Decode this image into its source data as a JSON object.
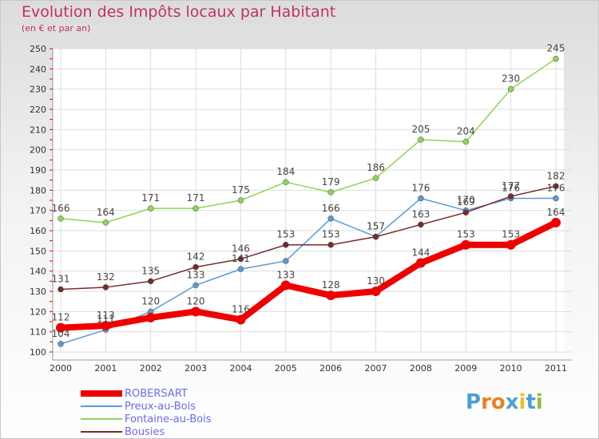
{
  "header": {
    "title": "Evolution des Impôts locaux par Habitant",
    "subtitle": "(en € et par an)"
  },
  "logo": {
    "text": "Proxiti",
    "letter_colors": [
      "#4a9fd8",
      "#e8821e",
      "#e8821e",
      "#4a9fd8",
      "#e8c020",
      "#4a9fd8",
      "#8ac03c"
    ]
  },
  "chart_data": {
    "type": "line",
    "x": [
      "2000",
      "2001",
      "2002",
      "2003",
      "2004",
      "2005",
      "2006",
      "2007",
      "2008",
      "2009",
      "2010",
      "2011"
    ],
    "ylim": [
      100,
      250
    ],
    "yticks": [
      100,
      110,
      120,
      130,
      140,
      150,
      160,
      170,
      180,
      190,
      200,
      210,
      220,
      230,
      240,
      250
    ],
    "grid": true,
    "legend_position": "bottom-left",
    "series": [
      {
        "name": "ROBERSART",
        "color": "#ee0000",
        "values": [
          112,
          113,
          117,
          120,
          116,
          133,
          128,
          130,
          144,
          153,
          153,
          164
        ],
        "labels": [
          "112",
          "113",
          "",
          "120",
          "116",
          "133",
          "128",
          "130",
          "144",
          "153",
          "153",
          "164"
        ]
      },
      {
        "name": "Preux-au-Bois",
        "color": "#5a9bd5",
        "values": [
          104,
          111,
          120,
          133,
          141,
          145,
          166,
          157,
          176,
          170,
          176,
          176
        ],
        "labels": [
          "104",
          "111",
          "120",
          "133",
          "141",
          "",
          "166",
          "157",
          "176",
          "170",
          "176",
          "176"
        ]
      },
      {
        "name": "Fontaine-au-Bois",
        "color": "#8fd45a",
        "values": [
          166,
          164,
          171,
          171,
          175,
          184,
          179,
          186,
          205,
          204,
          230,
          245
        ],
        "labels": [
          "166",
          "164",
          "171",
          "171",
          "175",
          "184",
          "179",
          "186",
          "205",
          "204",
          "230",
          "245"
        ]
      },
      {
        "name": "Bousies",
        "color": "#7a2a2a",
        "values": [
          131,
          132,
          135,
          142,
          146,
          153,
          153,
          157,
          163,
          169,
          177,
          182
        ],
        "labels": [
          "131",
          "132",
          "135",
          "142",
          "146",
          "153",
          "153",
          "157",
          "163",
          "169",
          "177",
          "182"
        ]
      }
    ]
  }
}
